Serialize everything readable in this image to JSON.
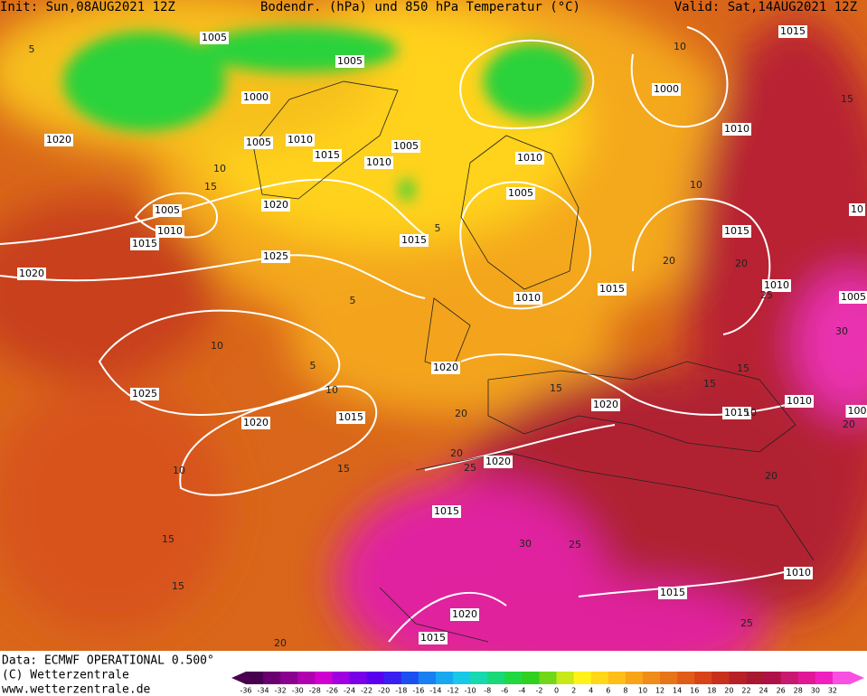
{
  "header": {
    "init": "Init: Sun,08AUG2021 12Z",
    "title": "Bodendr. (hPa) und 850 hPa Temperatur (°C)",
    "valid": "Valid: Sat,14AUG2021 12Z"
  },
  "isobar_labels": [
    "1005",
    "1005",
    "1000",
    "1005",
    "1010",
    "1015",
    "1005",
    "1010",
    "1010",
    "1005",
    "1000",
    "1015",
    "1010",
    "1020",
    "1005",
    "1010",
    "1015",
    "1020",
    "1025",
    "1015",
    "1020",
    "1015",
    "1010",
    "1015",
    "1010",
    "1005",
    "1020",
    "1025",
    "1020",
    "1015",
    "1020",
    "1010",
    "1015",
    "1020",
    "1015",
    "1010",
    "1015",
    "1020",
    "1015",
    "10",
    "100"
  ],
  "isotherm_labels": [
    "5",
    "10",
    "15",
    "10",
    "5",
    "10",
    "5",
    "10",
    "15",
    "20",
    "20",
    "15",
    "10",
    "5",
    "10",
    "15",
    "20",
    "25",
    "25",
    "30",
    "25",
    "20",
    "15",
    "15",
    "10",
    "15",
    "20",
    "25",
    "20",
    "15",
    "30",
    "20"
  ],
  "footer": {
    "source": "Data: ECMWF OPERATIONAL 0.500°",
    "copyright": "(C) Wetterzentrale",
    "url": "www.wetterzentrale.de"
  },
  "colorbar": {
    "labels": [
      -36,
      -34,
      -32,
      -30,
      -28,
      -26,
      -24,
      -22,
      -20,
      -18,
      -16,
      -14,
      -12,
      -10,
      -8,
      -6,
      -4,
      -2,
      0,
      2,
      4,
      6,
      8,
      10,
      12,
      14,
      16,
      18,
      20,
      22,
      24,
      26,
      28,
      30,
      32
    ]
  }
}
